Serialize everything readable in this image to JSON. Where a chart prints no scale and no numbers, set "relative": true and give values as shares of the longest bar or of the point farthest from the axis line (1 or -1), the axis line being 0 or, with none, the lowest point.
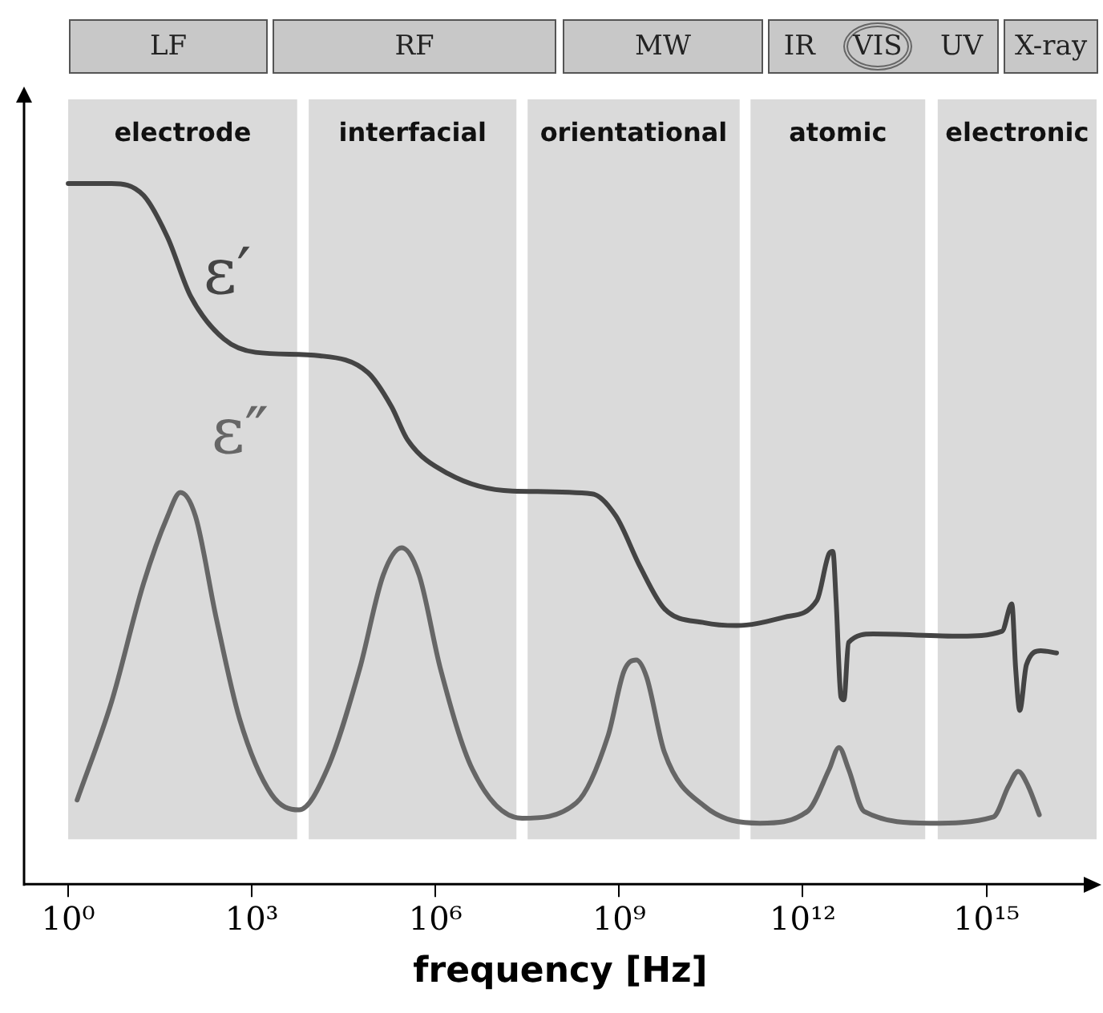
{
  "chart_data": {
    "type": "line",
    "xlabel": "frequency [Hz]",
    "log": "x",
    "relative": true,
    "grid": false,
    "legend": false,
    "marker": "none",
    "line_style": "solid",
    "tick_labels": "x",
    "xlim": [
      0.19,
      6.3e+16
    ],
    "xticks": [
      {
        "value": 1,
        "label": "10⁰"
      },
      {
        "value": 1000,
        "label": "10³"
      },
      {
        "value": 1000000.0,
        "label": "10⁶"
      },
      {
        "value": 1000000000.0,
        "label": "10⁹"
      },
      {
        "value": 1000000000000.0,
        "label": "10¹²"
      },
      {
        "value": 1000000000000000.0,
        "label": "10¹⁵"
      }
    ],
    "annotations": [
      "LF",
      "RF",
      "MW",
      "IR",
      "VIS",
      "UV",
      "X-ray"
    ],
    "series": [
      {
        "name": "ε′",
        "color": "#444444",
        "x": [
          1,
          5.1,
          17,
          42,
          100,
          350,
          1150,
          13000.0,
          79000.0,
          190000.0,
          350000.0,
          1600000.0,
          18000000.0,
          360000000.0,
          890000000.0,
          2200000000.0,
          5500000000.0,
          25000000000.0,
          83000000000.0,
          500000000000.0,
          1700000000000.0,
          2700000000000.0,
          3100000000000.0,
          3500000000000.0,
          4200000000000.0,
          4700000000000.0,
          5600000000000.0,
          14000000000000.0,
          380000000000000.0,
          1800000000000000.0,
          2600000000000000.0,
          3000000000000000.0,
          3500000000000000.0,
          4500000000000000.0,
          7700000000000000.0,
          1.4e+16
        ],
        "values": [
          1,
          1,
          0.983,
          0.923,
          0.839,
          0.778,
          0.759,
          0.754,
          0.73,
          0.682,
          0.634,
          0.586,
          0.561,
          0.557,
          0.525,
          0.453,
          0.393,
          0.373,
          0.369,
          0.381,
          0.405,
          0.472,
          0.475,
          0.405,
          0.267,
          0.263,
          0.345,
          0.357,
          0.354,
          0.361,
          0.4,
          0.308,
          0.248,
          0.313,
          0.333,
          0.33
        ]
      },
      {
        "name": "ε″",
        "color": "#666666",
        "x": [
          1.4,
          5.1,
          17,
          42,
          68,
          120,
          260,
          630,
          2100,
          5900,
          17000.0,
          58000.0,
          140000.0,
          280000.0,
          540000.0,
          1200000.0,
          4000000.0,
          26000000.0,
          200000000.0,
          660000000.0,
          1200000000.0,
          1900000000.0,
          2800000000.0,
          5500000000.0,
          25000000000.0,
          200000000000.0,
          1200000000000.0,
          2700000000000.0,
          3900000000000.0,
          5600000000000.0,
          10000000000000.0,
          120000000000000.0,
          1300000000000000.0,
          2300000000000000.0,
          3300000000000000.0,
          4800000000000000.0,
          7300000000000000.0
        ],
        "values": [
          0.12,
          0.26,
          0.429,
          0.525,
          0.559,
          0.525,
          0.381,
          0.236,
          0.128,
          0.106,
          0.164,
          0.308,
          0.441,
          0.48,
          0.441,
          0.308,
          0.164,
          0.094,
          0.116,
          0.212,
          0.304,
          0.32,
          0.296,
          0.188,
          0.111,
          0.087,
          0.104,
          0.164,
          0.195,
          0.164,
          0.104,
          0.087,
          0.096,
          0.14,
          0.161,
          0.14,
          0.099
        ]
      }
    ],
    "bands": [
      {
        "axis": "x",
        "from": 1,
        "to": 5500,
        "label": "electrode",
        "color": "#dadada"
      },
      {
        "axis": "x",
        "from": 8500,
        "to": 21000000.0,
        "label": "interfacial",
        "color": "#dadada"
      },
      {
        "axis": "x",
        "from": 32000000.0,
        "to": 93000000000.0,
        "label": "orientational",
        "color": "#dadada"
      },
      {
        "axis": "x",
        "from": 140000000000.0,
        "to": 100000000000000.0,
        "label": "atomic",
        "color": "#dadada"
      },
      {
        "axis": "x",
        "from": 160000000000000.0,
        "to": 6.3e+16,
        "label": "electronic",
        "color": "#dadada"
      }
    ]
  }
}
